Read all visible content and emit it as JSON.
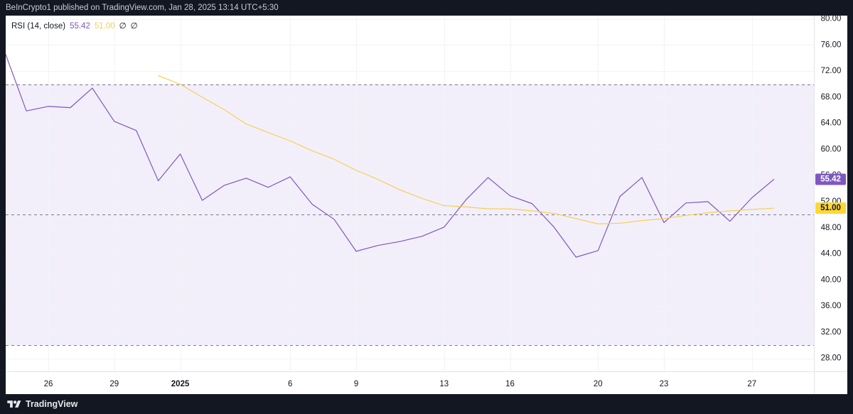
{
  "header": {
    "attribution": "BeInCrypto1 published on TradingView.com, Jan 28, 2025 13:14 UTC+5:30"
  },
  "legend": {
    "values": [
      "55.42",
      "51.00",
      "∅",
      "∅"
    ]
  },
  "footer": {
    "brand": "TradingView",
    "logo_icon": "tradingview-logo-icon"
  },
  "colors": {
    "frame": "#131722",
    "band": "#f3effa",
    "level": "#787b86",
    "grid": "#f0f3fa",
    "axis_border": "#e0e3eb"
  },
  "chart_data": {
    "type": "line",
    "title": "RSI (14, close)",
    "x": [
      "2024-12-24",
      "2024-12-25",
      "2024-12-26",
      "2024-12-27",
      "2024-12-28",
      "2024-12-29",
      "2024-12-30",
      "2024-12-31",
      "2025-01-01",
      "2025-01-02",
      "2025-01-03",
      "2025-01-04",
      "2025-01-05",
      "2025-01-06",
      "2025-01-07",
      "2025-01-08",
      "2025-01-09",
      "2025-01-10",
      "2025-01-11",
      "2025-01-12",
      "2025-01-13",
      "2025-01-14",
      "2025-01-15",
      "2025-01-16",
      "2025-01-17",
      "2025-01-18",
      "2025-01-19",
      "2025-01-20",
      "2025-01-21",
      "2025-01-22",
      "2025-01-23",
      "2025-01-24",
      "2025-01-25",
      "2025-01-26",
      "2025-01-27",
      "2025-01-28"
    ],
    "series": [
      {
        "color": "#7e57c2",
        "values": [
          75.1,
          65.9,
          66.6,
          66.4,
          69.4,
          64.3,
          62.9,
          55.2,
          59.3,
          52.2,
          54.5,
          55.6,
          54.2,
          55.8,
          51.6,
          49.3,
          44.4,
          45.3,
          45.9,
          46.7,
          48.1,
          52.3,
          55.7,
          52.9,
          51.7,
          48.1,
          43.5,
          44.5,
          52.8,
          55.7,
          48.8,
          51.8,
          52.0,
          49.0,
          52.6,
          55.42
        ]
      },
      {
        "color": "#f7cf55",
        "values": [
          null,
          null,
          null,
          null,
          null,
          null,
          null,
          71.3,
          70.0,
          68.0,
          66.1,
          63.9,
          62.6,
          61.3,
          59.8,
          58.5,
          56.8,
          55.4,
          53.8,
          52.5,
          51.4,
          51.2,
          50.9,
          50.9,
          50.6,
          50.2,
          49.4,
          48.6,
          48.7,
          49.1,
          49.4,
          49.9,
          50.3,
          50.6,
          50.8,
          51.0
        ]
      }
    ],
    "ylim": [
      26,
      80.5
    ],
    "y_tick_labels": [
      "80.00",
      "76.00",
      "72.00",
      "68.00",
      "64.00",
      "60.00",
      "56.00",
      "52.00",
      "48.00",
      "44.00",
      "40.00",
      "36.00",
      "32.00",
      "28.00"
    ],
    "x_ticks": [
      {
        "label": "26",
        "date": "2024-12-26"
      },
      {
        "label": "29",
        "date": "2024-12-29"
      },
      {
        "label": "2025",
        "date": "2025-01-01"
      },
      {
        "label": "6",
        "date": "2025-01-06"
      },
      {
        "label": "9",
        "date": "2025-01-09"
      },
      {
        "label": "13",
        "date": "2025-01-13"
      },
      {
        "label": "16",
        "date": "2025-01-16"
      },
      {
        "label": "20",
        "date": "2025-01-20"
      },
      {
        "label": "23",
        "date": "2025-01-23"
      },
      {
        "label": "27",
        "date": "2025-01-27"
      }
    ],
    "levels": [
      70,
      50,
      30
    ],
    "band": [
      30,
      70
    ],
    "grid": true,
    "last_value_labels": [
      {
        "text": "55.42",
        "background": "#7e57c2",
        "color": "#ffffff"
      },
      {
        "text": "51.00",
        "background": "#fdd835",
        "color": "#131722"
      }
    ]
  }
}
